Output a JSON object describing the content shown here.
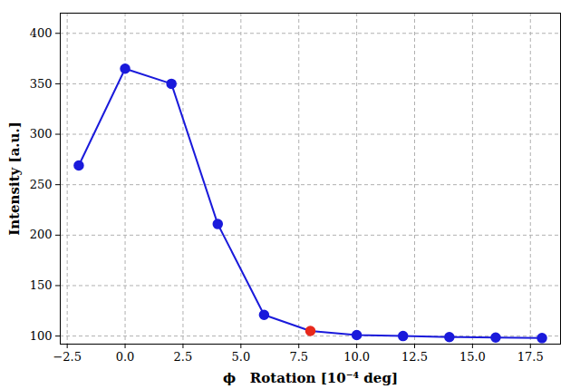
{
  "chart_data": {
    "type": "line",
    "x": [
      -2,
      0,
      2,
      4,
      6,
      8,
      10,
      12,
      14,
      16,
      18
    ],
    "values": [
      269,
      365,
      350,
      211,
      121,
      105,
      101,
      100,
      99,
      98.5,
      98
    ],
    "color": "#1a1adb",
    "colors": [
      "#1a1adb",
      "#1a1adb",
      "#1a1adb",
      "#1a1adb",
      "#1a1adb",
      "#e8291c",
      "#1a1adb",
      "#1a1adb",
      "#1a1adb",
      "#1a1adb",
      "#1a1adb"
    ],
    "marker": "circle",
    "line_style": "solid",
    "xlabel": "ϕ   Rotation [10⁻⁴ deg]",
    "ylabel": "Intensity [a.u.]",
    "xlim": [
      -2.8,
      18.8
    ],
    "ylim": [
      92,
      420
    ],
    "xticks": [
      {
        "value": -2.5,
        "label": "−2.5"
      },
      {
        "value": 0,
        "label": "0.0"
      },
      {
        "value": 2.5,
        "label": "2.5"
      },
      {
        "value": 5,
        "label": "5.0"
      },
      {
        "value": 7.5,
        "label": "7.5"
      },
      {
        "value": 10,
        "label": "10.0"
      },
      {
        "value": 12.5,
        "label": "12.5"
      },
      {
        "value": 15,
        "label": "15.0"
      },
      {
        "value": 17.5,
        "label": "17.5"
      }
    ],
    "yticks": [
      100,
      150,
      200,
      250,
      300,
      350,
      400
    ],
    "grid": true
  }
}
